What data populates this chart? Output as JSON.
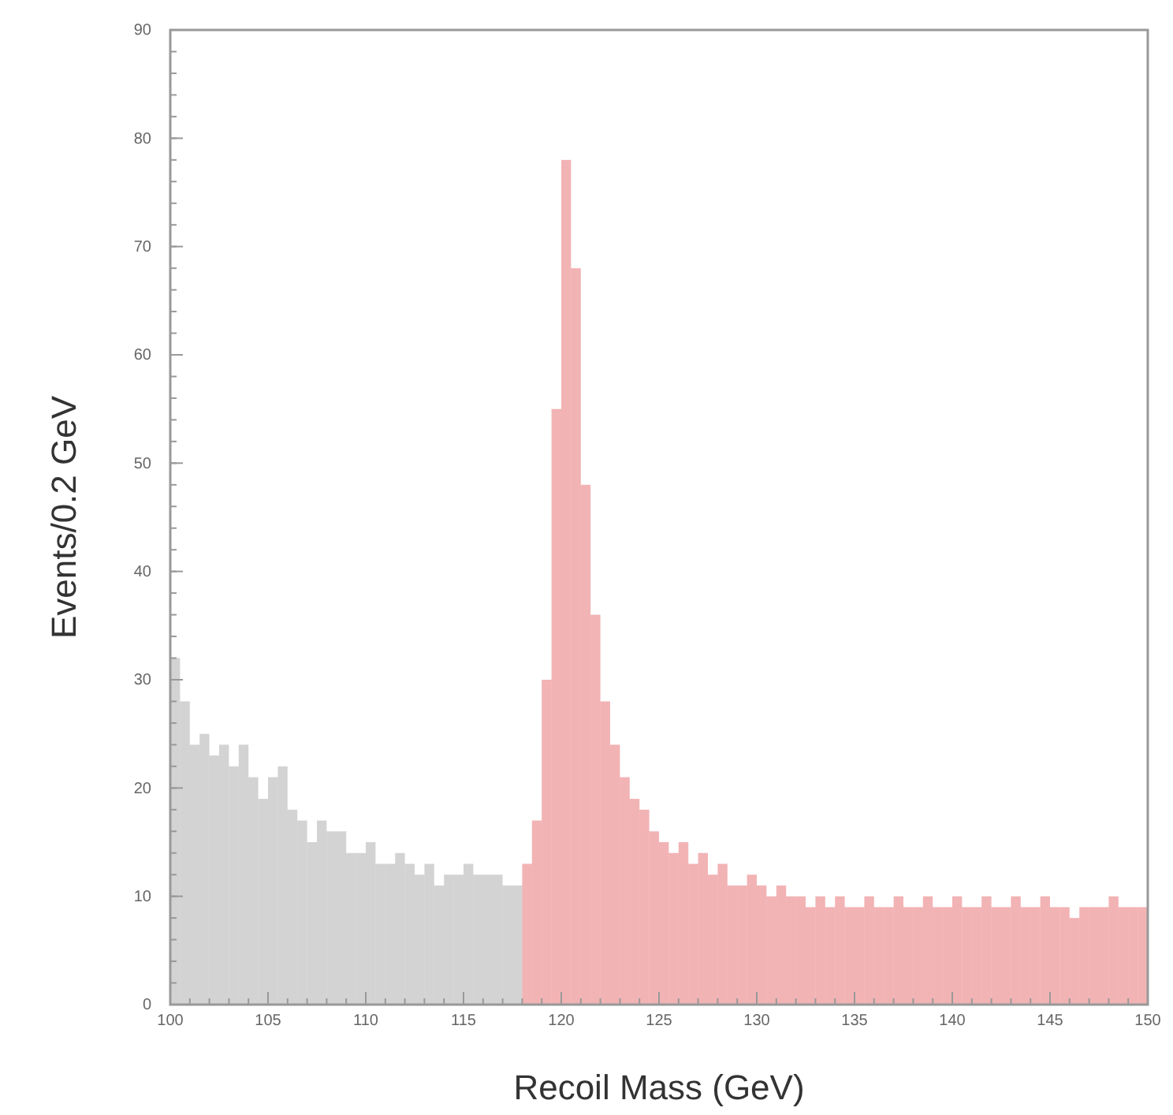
{
  "chart_data": {
    "type": "histogram",
    "xlabel": "Recoil Mass (GeV)",
    "ylabel": "Events/0.2 GeV",
    "bins": [
      100,
      100.5,
      101,
      101.5,
      102,
      102.5,
      103,
      103.5,
      104,
      104.5,
      105,
      105.5,
      106,
      106.5,
      107,
      107.5,
      108,
      108.5,
      109,
      109.5,
      110,
      110.5,
      111,
      111.5,
      112,
      112.5,
      113,
      113.5,
      114,
      114.5,
      115,
      115.5,
      116,
      116.5,
      117,
      117.5,
      118,
      118.5,
      119,
      119.5,
      120,
      120.5,
      121,
      121.5,
      122,
      122.5,
      123,
      123.5,
      124,
      124.5,
      125,
      125.5,
      126,
      126.5,
      127,
      127.5,
      128,
      128.5,
      129,
      129.5,
      130,
      130.5,
      131,
      131.5,
      132,
      132.5,
      133,
      133.5,
      134,
      134.5,
      135,
      135.5,
      136,
      136.5,
      137,
      137.5,
      138,
      138.5,
      139,
      139.5,
      140,
      140.5,
      141,
      141.5,
      142,
      142.5,
      143,
      143.5,
      144,
      144.5,
      145,
      145.5,
      146,
      146.5,
      147,
      147.5,
      148,
      148.5,
      149,
      149.5,
      150
    ],
    "values": [
      32,
      28,
      24,
      25,
      23,
      24,
      22,
      24,
      21,
      19,
      21,
      22,
      18,
      17,
      15,
      17,
      16,
      16,
      14,
      14,
      15,
      13,
      13,
      14,
      13,
      12,
      13,
      11,
      12,
      12,
      13,
      12,
      12,
      12,
      11,
      11,
      13,
      17,
      30,
      55,
      78,
      68,
      48,
      36,
      28,
      24,
      21,
      19,
      18,
      16,
      15,
      14,
      15,
      13,
      14,
      12,
      13,
      11,
      11,
      12,
      11,
      10,
      11,
      10,
      10,
      9,
      10,
      9,
      10,
      9,
      9,
      10,
      9,
      9,
      10,
      9,
      9,
      10,
      9,
      9,
      10,
      9,
      9,
      10,
      9,
      9,
      10,
      9,
      9,
      10,
      9,
      9,
      8,
      9,
      9,
      9,
      10,
      9,
      9,
      9
    ],
    "colors": [
      "#808080",
      "#808080",
      "#808080",
      "#808080",
      "#808080",
      "#808080",
      "#808080",
      "#808080",
      "#808080",
      "#808080",
      "#808080",
      "#808080",
      "#808080",
      "#808080",
      "#808080",
      "#808080",
      "#808080",
      "#808080",
      "#808080",
      "#808080",
      "#808080",
      "#808080",
      "#808080",
      "#808080",
      "#808080",
      "#808080",
      "#808080",
      "#808080",
      "#808080",
      "#808080",
      "#808080",
      "#808080",
      "#808080",
      "#808080",
      "#808080",
      "#808080",
      "#d9252b",
      "#d9252b",
      "#d9252b",
      "#d9252b",
      "#d9252b",
      "#d9252b",
      "#d9252b",
      "#d9252b",
      "#d9252b",
      "#d9252b",
      "#d9252b",
      "#d9252b",
      "#d9252b",
      "#d9252b",
      "#d9252b",
      "#d9252b",
      "#d9252b",
      "#d9252b",
      "#d9252b",
      "#d9252b",
      "#d9252b",
      "#d9252b",
      "#d9252b",
      "#d9252b",
      "#d9252b",
      "#d9252b",
      "#d9252b",
      "#d9252b",
      "#d9252b",
      "#d9252b",
      "#d9252b",
      "#d9252b",
      "#d9252b",
      "#d9252b",
      "#d9252b",
      "#d9252b",
      "#d9252b",
      "#d9252b",
      "#d9252b",
      "#d9252b",
      "#d9252b",
      "#d9252b",
      "#d9252b",
      "#d9252b",
      "#d9252b",
      "#d9252b",
      "#d9252b",
      "#d9252b",
      "#d9252b",
      "#d9252b",
      "#d9252b",
      "#d9252b",
      "#d9252b",
      "#d9252b",
      "#d9252b",
      "#d9252b",
      "#d9252b",
      "#d9252b",
      "#d9252b",
      "#d9252b",
      "#d9252b",
      "#d9252b",
      "#d9252b",
      "#d9252b"
    ],
    "xlim": [
      100,
      150
    ],
    "xticks": [
      100,
      105,
      110,
      115,
      120,
      125,
      130,
      135,
      140,
      145,
      150
    ],
    "ylim": [
      0,
      90
    ],
    "yticks": [
      0,
      10,
      20,
      30,
      40,
      50,
      60,
      70,
      80,
      90
    ],
    "grid": false
  }
}
